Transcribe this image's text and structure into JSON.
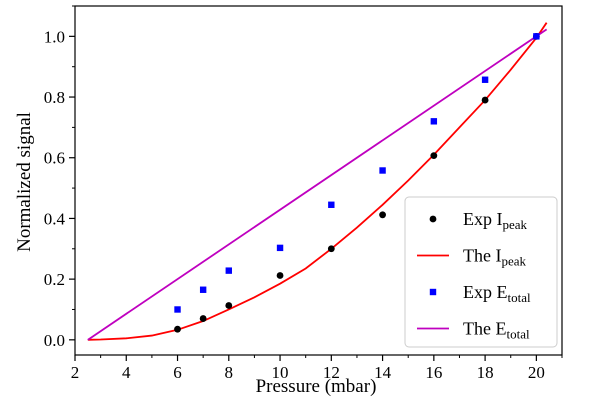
{
  "chart_data": {
    "type": "scatter",
    "title": "",
    "xlabel": "Pressure (mbar)",
    "ylabel": "Normalized signal",
    "xlim": [
      2,
      21
    ],
    "ylim": [
      -0.05,
      1.1
    ],
    "xticks": [
      2,
      4,
      6,
      8,
      10,
      12,
      14,
      16,
      18,
      20
    ],
    "yticks": [
      0.0,
      0.2,
      0.4,
      0.6,
      0.8,
      1.0
    ],
    "legend_position": "bottom-right",
    "series": [
      {
        "name": "Exp I",
        "name_sub": "peak",
        "kind": "scatter",
        "marker": "circle",
        "color": "#000000",
        "x": [
          6,
          7,
          8,
          10,
          12,
          14,
          16,
          18,
          20
        ],
        "y": [
          0.035,
          0.07,
          0.113,
          0.212,
          0.3,
          0.412,
          0.607,
          0.79,
          1.0
        ]
      },
      {
        "name": "The I",
        "name_sub": "peak",
        "kind": "line",
        "color": "#ff0000",
        "x": [
          2.5,
          3,
          4,
          5,
          6,
          7,
          8,
          9,
          10,
          11,
          12,
          13,
          14,
          15,
          16,
          17,
          18,
          19,
          20,
          20.4
        ],
        "y": [
          0.0,
          0.001,
          0.005,
          0.014,
          0.033,
          0.062,
          0.1,
          0.14,
          0.185,
          0.235,
          0.3,
          0.37,
          0.445,
          0.525,
          0.61,
          0.7,
          0.79,
          0.89,
          0.995,
          1.045
        ]
      },
      {
        "name": "Exp E",
        "name_sub": "total",
        "kind": "scatter",
        "marker": "square",
        "color": "#0000ff",
        "x": [
          6,
          7,
          8,
          10,
          12,
          14,
          16,
          18,
          20
        ],
        "y": [
          0.1,
          0.165,
          0.228,
          0.303,
          0.445,
          0.558,
          0.72,
          0.857,
          1.0
        ]
      },
      {
        "name": "The E",
        "name_sub": "total",
        "kind": "line",
        "color": "#bf00bf",
        "x": [
          2.5,
          20.4
        ],
        "y": [
          0.0,
          1.023
        ]
      }
    ]
  }
}
